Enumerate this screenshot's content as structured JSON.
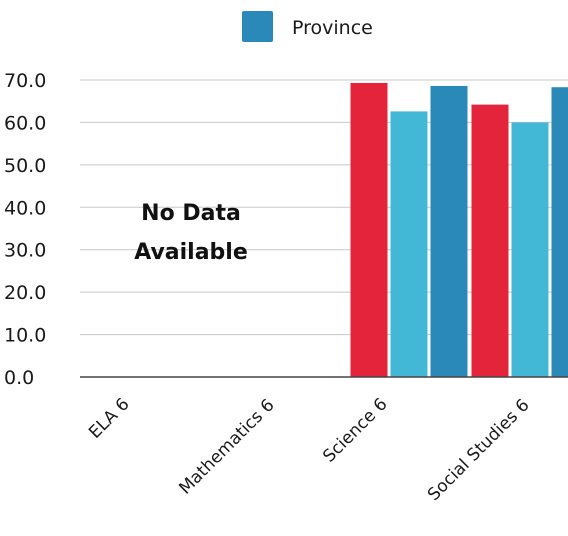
{
  "chart_data": {
    "type": "bar",
    "categories": [
      "ELA 6",
      "Mathematics 6",
      "Science 6",
      "Social Studies 6"
    ],
    "series": [
      {
        "color": "#e3243b",
        "values": [
          null,
          null,
          69.3,
          64.2
        ]
      },
      {
        "color": "#43b8d6",
        "values": [
          null,
          null,
          62.6,
          60.0
        ]
      },
      {
        "name": "Province",
        "color": "#2a89b8",
        "values": [
          null,
          null,
          68.6,
          68.3
        ]
      }
    ],
    "ylim": [
      0,
      70
    ],
    "yticks": [
      "0.0",
      "10.0",
      "20.0",
      "30.0",
      "40.0",
      "50.0",
      "60.0",
      "70.0"
    ],
    "grid": true,
    "legend_position": "top",
    "annotation": [
      "No Data",
      "Available"
    ]
  }
}
